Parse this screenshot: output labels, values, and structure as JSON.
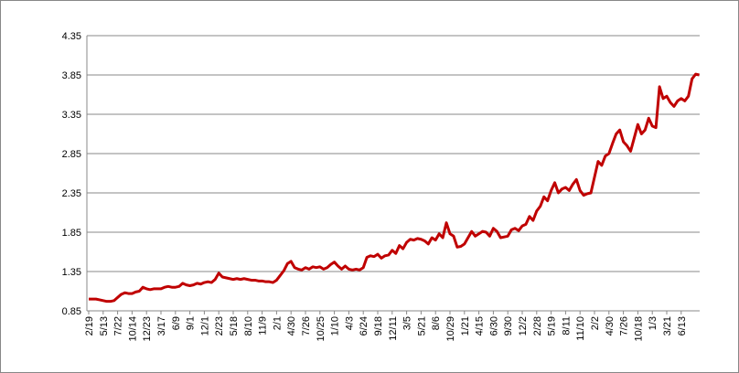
{
  "chart_data": {
    "type": "line",
    "categories": [
      "2/19",
      null,
      null,
      null,
      "5/13",
      null,
      null,
      null,
      "7/22",
      null,
      null,
      null,
      "10/14",
      null,
      null,
      null,
      "12/23",
      null,
      null,
      null,
      "3/17",
      null,
      null,
      null,
      "6/9",
      null,
      null,
      null,
      "9/1",
      null,
      null,
      null,
      "12/1",
      null,
      null,
      null,
      "2/23",
      null,
      null,
      null,
      "5/18",
      null,
      null,
      null,
      "8/10",
      null,
      null,
      null,
      "11/9",
      null,
      null,
      null,
      "2/1",
      null,
      null,
      null,
      "4/30",
      null,
      null,
      null,
      "7/26",
      null,
      null,
      null,
      "10/25",
      null,
      null,
      null,
      "1/10",
      null,
      null,
      null,
      "4/3",
      null,
      null,
      null,
      "6/24",
      null,
      null,
      null,
      "9/18",
      null,
      null,
      null,
      "12/11",
      null,
      null,
      null,
      "3/5",
      null,
      null,
      null,
      "5/21",
      null,
      null,
      null,
      "8/6",
      null,
      null,
      null,
      "10/29",
      null,
      null,
      null,
      "1/21",
      null,
      null,
      null,
      "4/15",
      null,
      null,
      null,
      "6/30",
      null,
      null,
      null,
      "9/30",
      null,
      null,
      null,
      "12/2",
      null,
      null,
      null,
      "2/28",
      null,
      null,
      null,
      "5/19",
      null,
      null,
      null,
      "8/11",
      null,
      null,
      null,
      "11/10",
      null,
      null,
      null,
      "2/2",
      null,
      null,
      null,
      "4/30",
      null,
      null,
      null,
      "7/26",
      null,
      null,
      null,
      "10/18",
      null,
      null,
      null,
      "1/3",
      null,
      null,
      null,
      "3/21",
      null,
      null,
      null,
      "6/13",
      null,
      null,
      null,
      null,
      null
    ],
    "series": [
      {
        "color": "#c00000",
        "values": [
          1.0,
          1.0,
          1.0,
          0.99,
          0.98,
          0.97,
          0.97,
          0.98,
          1.02,
          1.06,
          1.08,
          1.07,
          1.07,
          1.09,
          1.1,
          1.15,
          1.13,
          1.12,
          1.13,
          1.13,
          1.13,
          1.15,
          1.16,
          1.15,
          1.15,
          1.16,
          1.2,
          1.18,
          1.17,
          1.18,
          1.2,
          1.19,
          1.21,
          1.22,
          1.21,
          1.25,
          1.33,
          1.28,
          1.27,
          1.26,
          1.25,
          1.26,
          1.25,
          1.26,
          1.25,
          1.24,
          1.24,
          1.23,
          1.23,
          1.22,
          1.22,
          1.21,
          1.24,
          1.3,
          1.36,
          1.45,
          1.48,
          1.4,
          1.38,
          1.37,
          1.4,
          1.38,
          1.41,
          1.4,
          1.41,
          1.38,
          1.4,
          1.44,
          1.47,
          1.42,
          1.38,
          1.42,
          1.38,
          1.37,
          1.38,
          1.37,
          1.4,
          1.53,
          1.55,
          1.54,
          1.57,
          1.52,
          1.55,
          1.56,
          1.62,
          1.58,
          1.68,
          1.64,
          1.72,
          1.76,
          1.75,
          1.77,
          1.76,
          1.74,
          1.7,
          1.78,
          1.75,
          1.83,
          1.78,
          1.97,
          1.83,
          1.8,
          1.66,
          1.67,
          1.7,
          1.78,
          1.86,
          1.8,
          1.83,
          1.86,
          1.85,
          1.8,
          1.9,
          1.86,
          1.78,
          1.79,
          1.8,
          1.88,
          1.9,
          1.87,
          1.93,
          1.95,
          2.05,
          2.0,
          2.12,
          2.18,
          2.3,
          2.25,
          2.38,
          2.48,
          2.35,
          2.4,
          2.42,
          2.38,
          2.46,
          2.52,
          2.38,
          2.32,
          2.34,
          2.35,
          2.55,
          2.75,
          2.7,
          2.82,
          2.85,
          2.98,
          3.1,
          3.15,
          3.0,
          2.95,
          2.88,
          3.05,
          3.22,
          3.1,
          3.15,
          3.3,
          3.2,
          3.18,
          3.7,
          3.55,
          3.58,
          3.5,
          3.45,
          3.52,
          3.55,
          3.52,
          3.58,
          3.8,
          3.86,
          3.85
        ]
      }
    ],
    "ylim": [
      0.85,
      4.35
    ],
    "yticks": [
      0.85,
      1.35,
      1.85,
      2.35,
      2.85,
      3.35,
      3.85,
      4.35
    ],
    "grid": true
  }
}
